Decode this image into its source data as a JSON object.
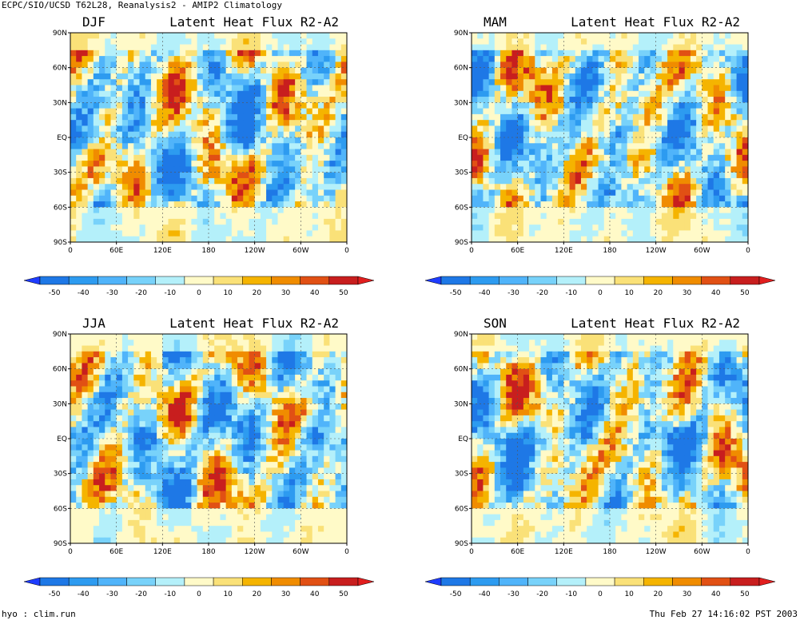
{
  "header": {
    "top_left": "ECPC/SIO/UCSD T62L28, Reanalysis2 - AMIP2 Climatology",
    "bottom_left": "hyo : clim.run",
    "bottom_right": "Thu Feb 27 14:16:02 PST 2003"
  },
  "colorbar": {
    "labels": [
      "-50",
      "-40",
      "-30",
      "-20",
      "-10",
      "0",
      "10",
      "20",
      "30",
      "40",
      "50"
    ],
    "colors": [
      "#1e78e6",
      "#2d9bf0",
      "#50b4fa",
      "#78d2fa",
      "#b4f0fa",
      "#fffac8",
      "#fae178",
      "#f5b400",
      "#f08c00",
      "#e15014",
      "#c81e1e"
    ],
    "under_color": "#1e3cff",
    "over_color": "#e11e1e"
  },
  "chart_data": [
    {
      "type": "heatmap",
      "season": "DJF",
      "title": "Latent Heat Flux  R2-A2",
      "ylabel_ticks": [
        "90N",
        "60N",
        "30N",
        "EQ",
        "30S",
        "60S",
        "90S"
      ],
      "xlabel_ticks": [
        "0",
        "60E",
        "120E",
        "180",
        "120W",
        "60W",
        "0"
      ],
      "value_range": [
        -50,
        50
      ]
    },
    {
      "type": "heatmap",
      "season": "MAM",
      "title": "Latent Heat Flux  R2-A2",
      "ylabel_ticks": [
        "90N",
        "60N",
        "30N",
        "EQ",
        "30S",
        "60S",
        "90S"
      ],
      "xlabel_ticks": [
        "0",
        "60E",
        "120E",
        "180",
        "120W",
        "60W",
        "0"
      ],
      "value_range": [
        -50,
        50
      ]
    },
    {
      "type": "heatmap",
      "season": "JJA",
      "title": "Latent Heat Flux  R2-A2",
      "ylabel_ticks": [
        "90N",
        "60N",
        "30N",
        "EQ",
        "30S",
        "60S",
        "90S"
      ],
      "xlabel_ticks": [
        "0",
        "60E",
        "120E",
        "180",
        "120W",
        "60W",
        "0"
      ],
      "value_range": [
        -50,
        50
      ]
    },
    {
      "type": "heatmap",
      "season": "SON",
      "title": "Latent Heat Flux  R2-A2",
      "ylabel_ticks": [
        "90N",
        "60N",
        "30N",
        "EQ",
        "30S",
        "60S",
        "90S"
      ],
      "xlabel_ticks": [
        "0",
        "60E",
        "120E",
        "180",
        "120W",
        "60W",
        "0"
      ],
      "value_range": [
        -50,
        50
      ]
    }
  ]
}
